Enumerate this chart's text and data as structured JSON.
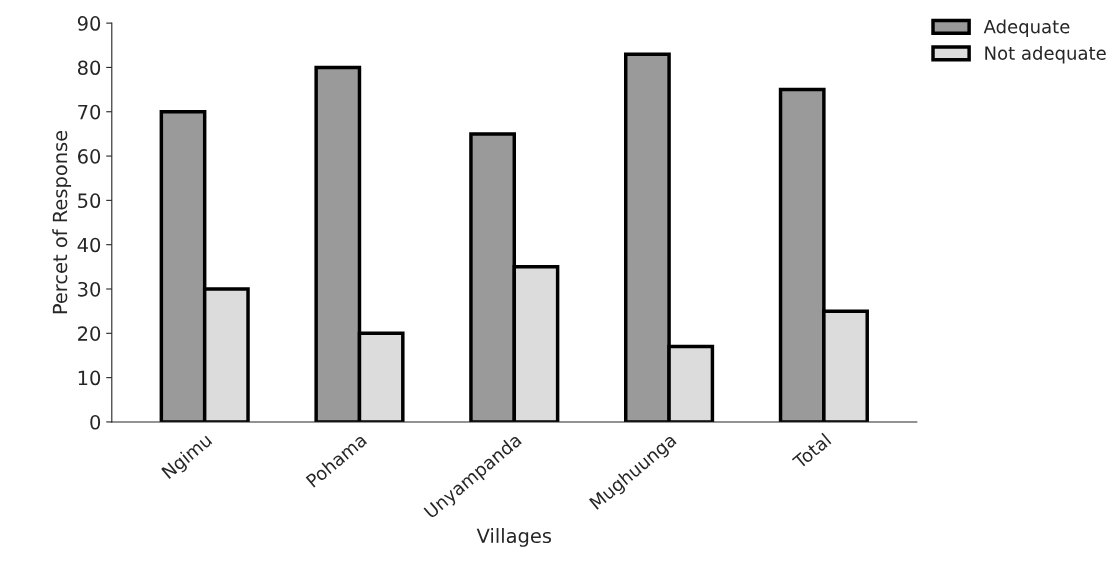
{
  "chart_data": {
    "type": "bar",
    "xlabel": "Villages",
    "ylabel": "Percet of Response",
    "categories": [
      "Ngimu",
      "Pohama",
      "Unyampanda",
      "Mughuunga",
      "Total"
    ],
    "series": [
      {
        "name": "Adequate",
        "color": "#9a9a9a",
        "values": [
          70,
          80,
          65,
          83,
          75
        ]
      },
      {
        "name": "Not adequate",
        "color": "#dcdcdc",
        "values": [
          30,
          20,
          35,
          17,
          25
        ]
      }
    ],
    "ylim": [
      0,
      90
    ],
    "yticks": [
      0,
      10,
      20,
      30,
      40,
      50,
      60,
      70,
      80,
      90
    ],
    "grid": false,
    "legend": "top right"
  }
}
